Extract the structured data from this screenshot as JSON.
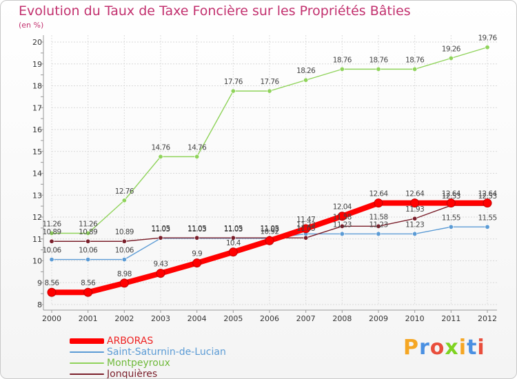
{
  "chart_data": {
    "type": "line",
    "title": "Evolution du Taux de Taxe Foncière sur les Propriétés Bâties",
    "unit_label": "(en %)",
    "x": [
      "2000",
      "2001",
      "2002",
      "2003",
      "2004",
      "2005",
      "2006",
      "2007",
      "2008",
      "2009",
      "2010",
      "2011",
      "2012"
    ],
    "ylim": [
      8,
      20
    ],
    "yticks": [
      "8",
      "9",
      "10",
      "11",
      "12",
      "13",
      "14",
      "15",
      "16",
      "17",
      "18",
      "19",
      "20"
    ],
    "grid": true,
    "legend_position": "bottom-left",
    "series": [
      {
        "name": "ARBORAS",
        "color": "#ff0000",
        "values": [
          8.56,
          8.56,
          8.98,
          9.43,
          9.9,
          10.4,
          10.92,
          11.47,
          12.04,
          12.64,
          12.64,
          12.64,
          12.64
        ],
        "labels": [
          "8.56",
          "8.56",
          "8.98",
          "9.43",
          "9.9",
          "10.4",
          "10.92",
          "11.47",
          "12.04",
          "12.64",
          "12.64",
          "12.64",
          "12.64"
        ]
      },
      {
        "name": "Saint-Saturnin-de-Lucian",
        "color": "#5b9bd5",
        "values": [
          10.06,
          10.06,
          10.06,
          11.03,
          11.03,
          11.03,
          11.03,
          11.23,
          11.23,
          11.23,
          11.23,
          11.55,
          11.55
        ],
        "labels": [
          "10.06",
          "10.06",
          "10.06",
          "11.03",
          "11.03",
          "11.03",
          "11.03",
          "11.23",
          "11.23",
          "11.23",
          "11.23",
          "11.55",
          "11.55"
        ]
      },
      {
        "name": "Montpeyroux",
        "color": "#8fd35a",
        "values": [
          11.26,
          11.26,
          12.76,
          14.76,
          14.76,
          17.76,
          17.76,
          18.26,
          18.76,
          18.76,
          18.76,
          19.26,
          19.76
        ],
        "labels": [
          "11.26",
          "11.26",
          "12.76",
          "14.76",
          "14.76",
          "17.76",
          "17.76",
          "18.26",
          "18.76",
          "18.76",
          "18.76",
          "19.26",
          "19.76"
        ]
      },
      {
        "name": "Jonquières",
        "color": "#7a1f2b",
        "values": [
          10.89,
          10.89,
          10.89,
          11.05,
          11.05,
          11.05,
          11.05,
          11.05,
          11.58,
          11.58,
          11.93,
          12.53,
          12.53
        ],
        "labels": [
          "10.89",
          "10.89",
          "10.89",
          "11.05",
          "11.05",
          "11.05",
          "11.05",
          "11.05",
          "11.58",
          "11.58",
          "11.93",
          "12.53",
          "12.53"
        ]
      }
    ]
  },
  "logo": {
    "text": "Proxiti",
    "letter_colors": [
      "#f5a623",
      "#4a90e2",
      "#e94e3c",
      "#7ed321",
      "#f5a623",
      "#4a90e2",
      "#e94e3c"
    ]
  }
}
